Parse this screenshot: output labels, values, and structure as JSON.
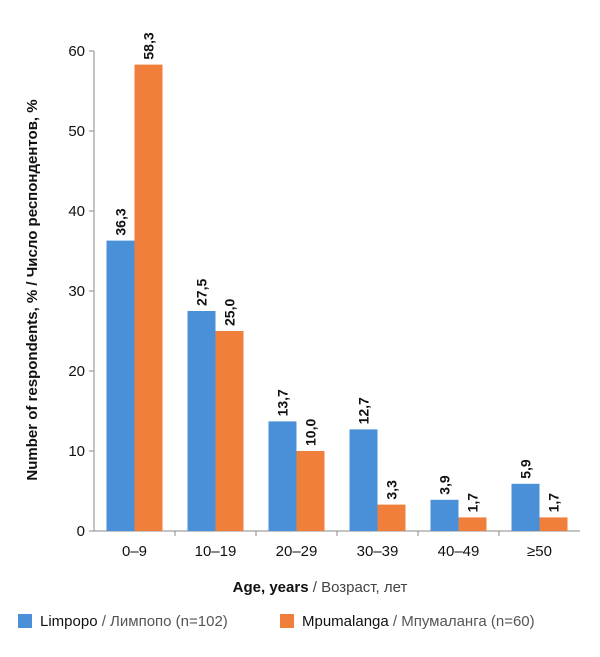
{
  "chart_data": {
    "type": "bar",
    "categories": [
      "0–9",
      "10–19",
      "20–29",
      "30–39",
      "40–49",
      "≥50"
    ],
    "series": [
      {
        "name": "Limpopo / Лимпопо (n=102)",
        "name_main": "Limpopo",
        "name_secondary": "/ Лимпопо (n=102)",
        "color": "#4a90d9",
        "values": [
          36.3,
          27.5,
          13.7,
          12.7,
          3.9,
          5.9
        ],
        "labels": [
          "36,3",
          "27,5",
          "13,7",
          "12,7",
          "3,9",
          "5,9"
        ]
      },
      {
        "name": "Mpumalanga / Мпумаланга (n=60)",
        "name_main": "Mpumalanga",
        "name_secondary": "/ Мпумаланга (n=60)",
        "color": "#f07f3c",
        "values": [
          58.3,
          25.0,
          10.0,
          3.3,
          1.7,
          1.7
        ],
        "labels": [
          "58,3",
          "25,0",
          "10,0",
          "3,3",
          "1,7",
          "1,7"
        ]
      }
    ],
    "xlabel": "Age, years / Возраст, лет",
    "xlabel_main": "Age, years",
    "xlabel_secondary": "/ Возраст, лет",
    "ylabel": "Number of respondents, % / Число респондентов, %",
    "ylim": [
      0,
      60
    ],
    "yticks": [
      0,
      10,
      20,
      30,
      40,
      50,
      60
    ],
    "grid": false,
    "legend_position": "bottom"
  }
}
